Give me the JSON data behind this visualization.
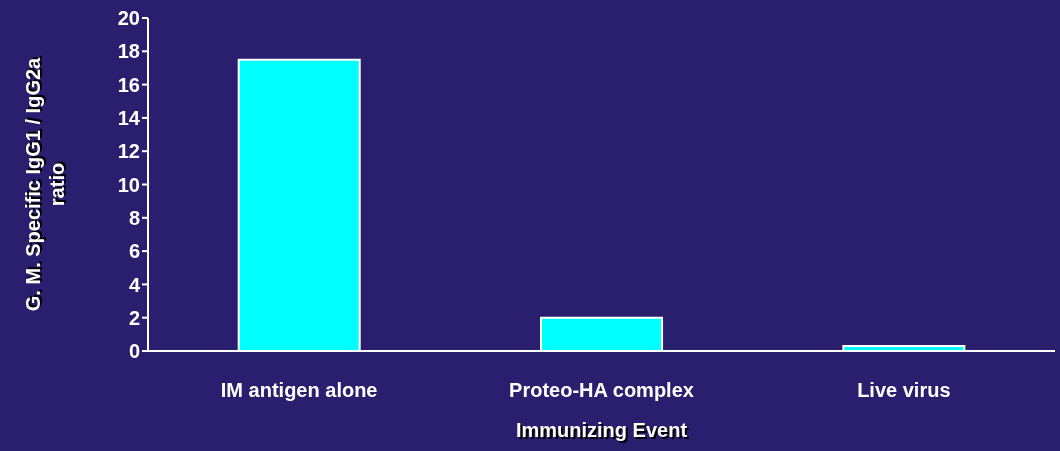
{
  "chart_data": {
    "type": "bar",
    "xlabel": "Immunizing Event",
    "ylabel": "G. M. Specific IgG1 / IgG2a ratio",
    "categories": [
      "IM antigen alone",
      "Proteo-HA complex",
      "Live virus"
    ],
    "values": [
      17.5,
      2.0,
      0.3
    ],
    "color": "#00ffff",
    "ylim": [
      0,
      20
    ],
    "yticks": [
      0,
      2,
      4,
      6,
      8,
      10,
      12,
      14,
      16,
      18,
      20
    ]
  }
}
